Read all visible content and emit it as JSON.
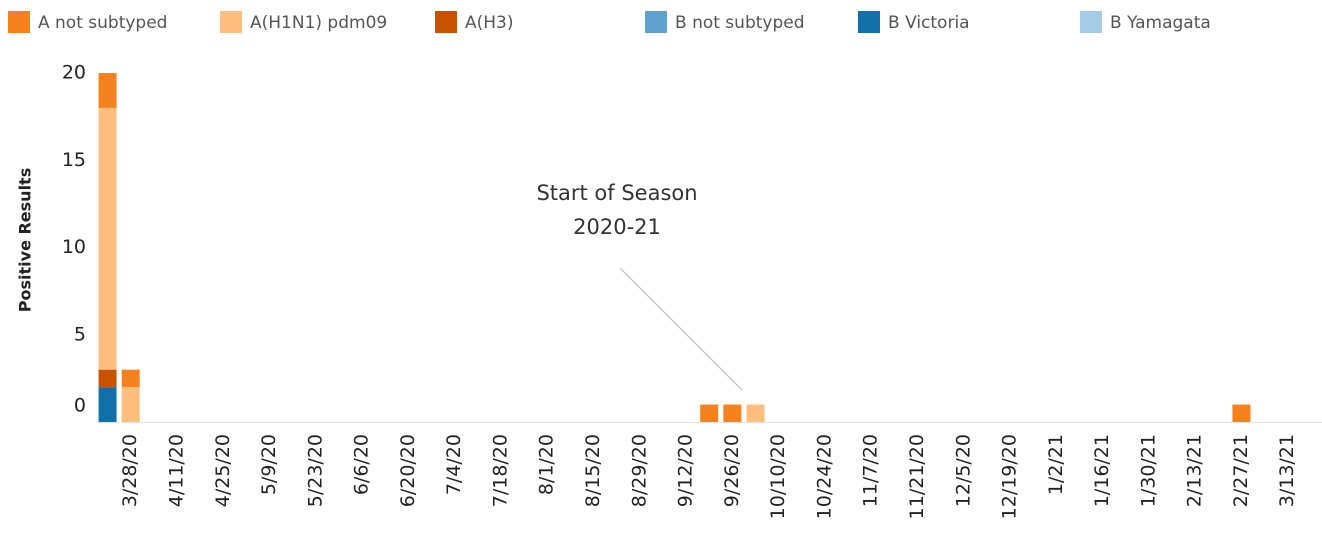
{
  "chart_data": {
    "type": "stacked_bar",
    "y_label": "Positive Results",
    "annotation": [
      "Start of Season",
      "2020-21"
    ],
    "categories": [
      null,
      "3/28/20",
      null,
      "4/11/20",
      null,
      "4/25/20",
      null,
      "5/9/20",
      null,
      "5/23/20",
      null,
      "6/6/20",
      null,
      "6/20/20",
      null,
      "7/4/20",
      null,
      "7/18/20",
      null,
      "8/1/20",
      null,
      "8/15/20",
      null,
      "8/29/20",
      null,
      "9/12/20",
      null,
      "9/26/20",
      null,
      "10/10/20",
      null,
      "10/24/20",
      null,
      "11/7/20",
      null,
      "11/21/20",
      null,
      "12/5/20",
      null,
      "12/19/20",
      null,
      "1/2/21",
      null,
      "1/16/21",
      null,
      "1/30/21",
      null,
      "2/13/21",
      null,
      "2/27/21",
      null,
      "3/13/21",
      null
    ],
    "series": [
      {
        "name": "A not subtyped",
        "color": "#f5811f",
        "values": [
          2,
          1,
          0,
          0,
          0,
          0,
          0,
          0,
          0,
          0,
          0,
          0,
          0,
          0,
          0,
          0,
          0,
          0,
          0,
          0,
          0,
          0,
          0,
          0,
          0,
          0,
          1,
          1,
          0,
          0,
          0,
          0,
          0,
          0,
          0,
          0,
          0,
          0,
          0,
          0,
          0,
          0,
          0,
          0,
          0,
          0,
          0,
          0,
          0,
          1,
          0,
          0,
          0
        ]
      },
      {
        "name": "A(H1N1) pdm09",
        "color": "#ffbe7d",
        "values": [
          15,
          2,
          0,
          0,
          0,
          0,
          0,
          0,
          0,
          0,
          0,
          0,
          0,
          0,
          0,
          0,
          0,
          0,
          0,
          0,
          0,
          0,
          0,
          0,
          0,
          0,
          0,
          0,
          1,
          0,
          0,
          0,
          0,
          0,
          0,
          0,
          0,
          0,
          0,
          0,
          0,
          0,
          0,
          0,
          0,
          0,
          0,
          0,
          0,
          0,
          0,
          0,
          0
        ]
      },
      {
        "name": "A(H3)",
        "color": "#c85200",
        "values": [
          1,
          0,
          0,
          0,
          0,
          0,
          0,
          0,
          0,
          0,
          0,
          0,
          0,
          0,
          0,
          0,
          0,
          0,
          0,
          0,
          0,
          0,
          0,
          0,
          0,
          0,
          0,
          0,
          0,
          0,
          0,
          0,
          0,
          0,
          0,
          0,
          0,
          0,
          0,
          0,
          0,
          0,
          0,
          0,
          0,
          0,
          0,
          0,
          0,
          0,
          0,
          0,
          0
        ]
      },
      {
        "name": "B not subtyped",
        "color": "#5fa2ce",
        "values": [
          0,
          0,
          0,
          0,
          0,
          0,
          0,
          0,
          0,
          0,
          0,
          0,
          0,
          0,
          0,
          0,
          0,
          0,
          0,
          0,
          0,
          0,
          0,
          0,
          0,
          0,
          0,
          0,
          0,
          0,
          0,
          0,
          0,
          0,
          0,
          0,
          0,
          0,
          0,
          0,
          0,
          0,
          0,
          0,
          0,
          0,
          0,
          0,
          0,
          0,
          0,
          0,
          0
        ]
      },
      {
        "name": "B Victoria",
        "color": "#1170aa",
        "values": [
          2,
          0,
          0,
          0,
          0,
          0,
          0,
          0,
          0,
          0,
          0,
          0,
          0,
          0,
          0,
          0,
          0,
          0,
          0,
          0,
          0,
          0,
          0,
          0,
          0,
          0,
          0,
          0,
          0,
          0,
          0,
          0,
          0,
          0,
          0,
          0,
          0,
          0,
          0,
          0,
          0,
          0,
          0,
          0,
          0,
          0,
          0,
          0,
          0,
          0,
          0,
          0,
          0
        ]
      },
      {
        "name": "B Yamagata",
        "color": "#a3cce9",
        "values": [
          0,
          0,
          0,
          0,
          0,
          0,
          0,
          0,
          0,
          0,
          0,
          0,
          0,
          0,
          0,
          0,
          0,
          0,
          0,
          0,
          0,
          0,
          0,
          0,
          0,
          0,
          0,
          0,
          0,
          0,
          0,
          0,
          0,
          0,
          0,
          0,
          0,
          0,
          0,
          0,
          0,
          0,
          0,
          0,
          0,
          0,
          0,
          0,
          0,
          0,
          0,
          0,
          0
        ]
      }
    ],
    "ylim": [
      0,
      20
    ],
    "yticks": [
      0,
      5,
      10,
      15,
      20
    ],
    "grid": false
  }
}
